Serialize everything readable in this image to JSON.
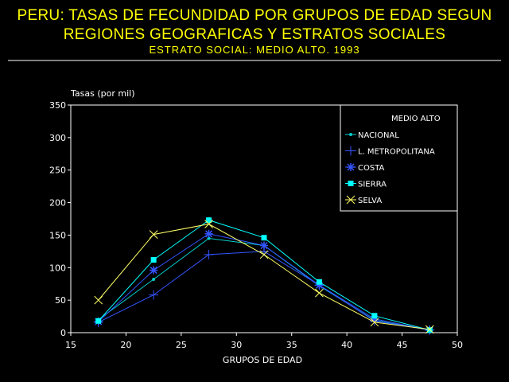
{
  "chart_data": {
    "type": "line",
    "title_line1": "PERU: TASAS DE FECUNDIDAD POR GRUPOS DE EDAD SEGUN",
    "title_line2": "REGIONES GEOGRAFICAS Y ESTRATOS SOCIALES",
    "subtitle": "ESTRATO SOCIAL: MEDIO ALTO. 1993",
    "ylabel": "Tasas (por mil)",
    "xlabel": "GRUPOS DE EDAD",
    "xlim": [
      15,
      50
    ],
    "ylim": [
      0,
      350
    ],
    "x_ticks": [
      15,
      20,
      25,
      30,
      35,
      40,
      45,
      50
    ],
    "y_ticks": [
      0,
      50,
      100,
      150,
      200,
      250,
      300,
      350
    ],
    "x": [
      17.5,
      22.5,
      27.5,
      32.5,
      37.5,
      42.5,
      47.5
    ],
    "legend_title": "MEDIO ALTO",
    "legend_position": "top-right",
    "series": [
      {
        "name": "NACIONAL",
        "color": "#00cccc",
        "marker": "dot",
        "values": [
          20,
          82,
          145,
          134,
          72,
          19,
          4
        ]
      },
      {
        "name": "L. METROPOLITANA",
        "color": "#3355ff",
        "marker": "plus",
        "values": [
          16,
          58,
          120,
          125,
          73,
          18,
          4
        ]
      },
      {
        "name": "COSTA",
        "color": "#3355ff",
        "marker": "asterisk",
        "values": [
          17,
          96,
          152,
          134,
          73,
          21,
          4
        ]
      },
      {
        "name": "SIERRA",
        "color": "#00ffff",
        "marker": "square",
        "values": [
          18,
          112,
          173,
          146,
          78,
          26,
          4
        ]
      },
      {
        "name": "SELVA",
        "color": "#ffff66",
        "marker": "x",
        "values": [
          50,
          151,
          167,
          120,
          61,
          16,
          5
        ]
      }
    ]
  }
}
